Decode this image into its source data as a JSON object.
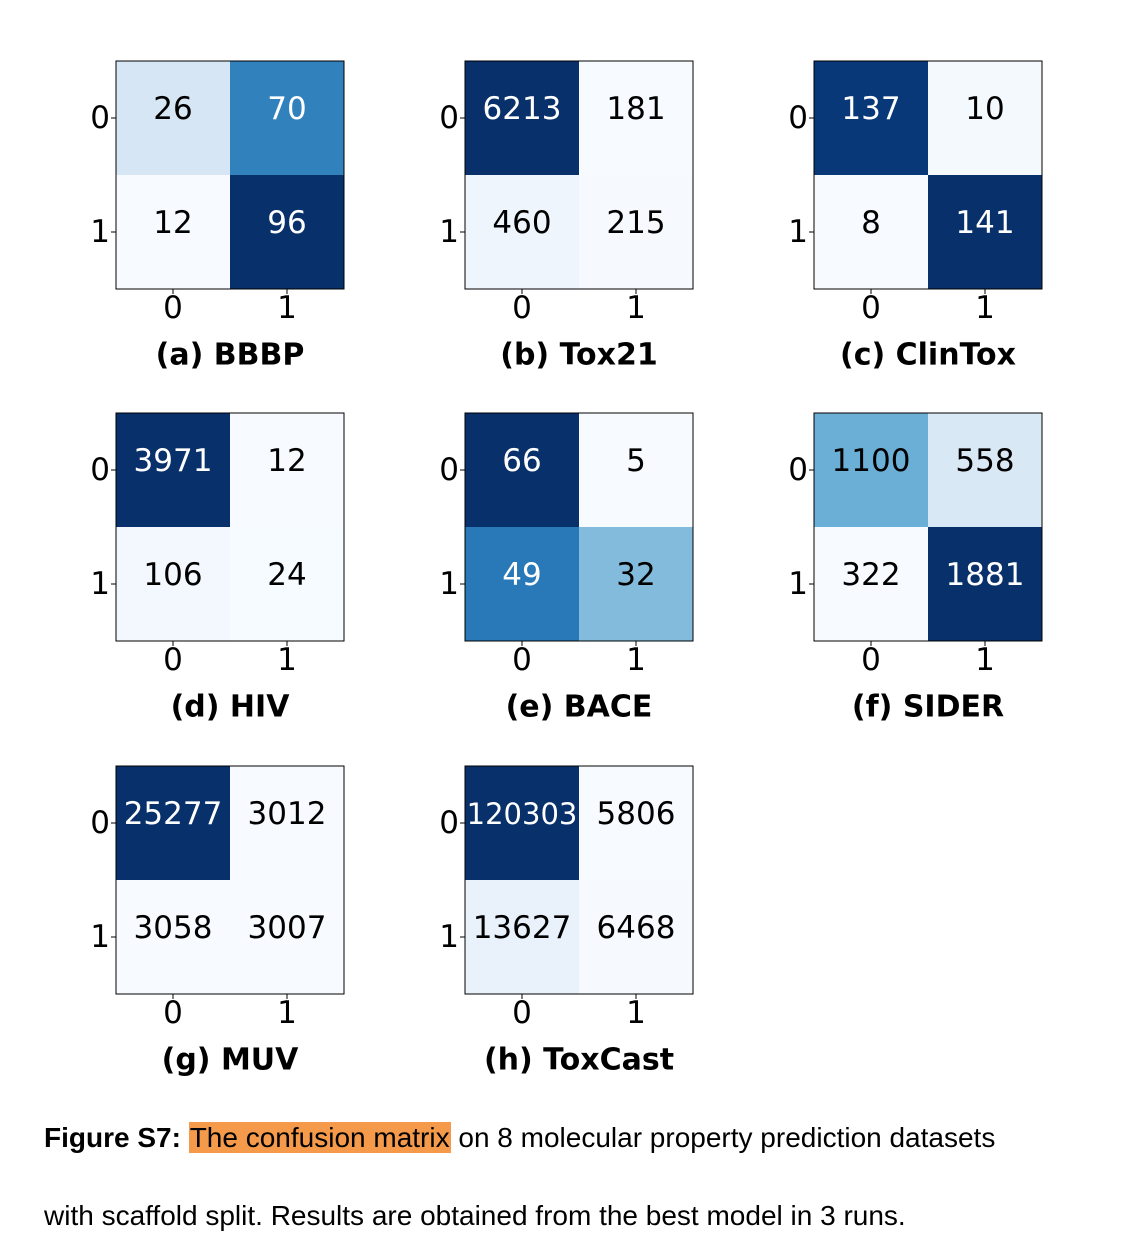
{
  "chart_data": [
    {
      "type": "heatmap",
      "panel_label": "(a) BBBP",
      "x_ticks": [
        "0",
        "1"
      ],
      "y_ticks": [
        "0",
        "1"
      ],
      "matrix": [
        [
          26,
          70
        ],
        [
          12,
          96
        ]
      ],
      "colormap": "Blues"
    },
    {
      "type": "heatmap",
      "panel_label": "(b) Tox21",
      "x_ticks": [
        "0",
        "1"
      ],
      "y_ticks": [
        "0",
        "1"
      ],
      "matrix": [
        [
          6213,
          181
        ],
        [
          460,
          215
        ]
      ],
      "colormap": "Blues"
    },
    {
      "type": "heatmap",
      "panel_label": "(c) ClinTox",
      "x_ticks": [
        "0",
        "1"
      ],
      "y_ticks": [
        "0",
        "1"
      ],
      "matrix": [
        [
          137,
          10
        ],
        [
          8,
          141
        ]
      ],
      "colormap": "Blues"
    },
    {
      "type": "heatmap",
      "panel_label": "(d) HIV",
      "x_ticks": [
        "0",
        "1"
      ],
      "y_ticks": [
        "0",
        "1"
      ],
      "matrix": [
        [
          3971,
          12
        ],
        [
          106,
          24
        ]
      ],
      "colormap": "Blues"
    },
    {
      "type": "heatmap",
      "panel_label": "(e) BACE",
      "x_ticks": [
        "0",
        "1"
      ],
      "y_ticks": [
        "0",
        "1"
      ],
      "matrix": [
        [
          66,
          5
        ],
        [
          49,
          32
        ]
      ],
      "colormap": "Blues"
    },
    {
      "type": "heatmap",
      "panel_label": "(f) SIDER",
      "x_ticks": [
        "0",
        "1"
      ],
      "y_ticks": [
        "0",
        "1"
      ],
      "matrix": [
        [
          1100,
          558
        ],
        [
          322,
          1881
        ]
      ],
      "colormap": "Blues"
    },
    {
      "type": "heatmap",
      "panel_label": "(g) MUV",
      "x_ticks": [
        "0",
        "1"
      ],
      "y_ticks": [
        "0",
        "1"
      ],
      "matrix": [
        [
          25277,
          3012
        ],
        [
          3058,
          3007
        ]
      ],
      "colormap": "Blues"
    },
    {
      "type": "heatmap",
      "panel_label": "(h) ToxCast",
      "x_ticks": [
        "0",
        "1"
      ],
      "y_ticks": [
        "0",
        "1"
      ],
      "matrix": [
        [
          120303,
          5806
        ],
        [
          13627,
          6468
        ]
      ],
      "colormap": "Blues"
    }
  ],
  "caption": {
    "label": "Figure S7:",
    "highlight": "The confusion matrix",
    "line1_rest": " on 8 molecular property prediction datasets",
    "line2": "with scaffold split. Results are obtained from the best model in 3 runs."
  },
  "colors": {
    "highlight": "#f59a4b",
    "text": "#000000",
    "cell_light_text": "#ffffff",
    "cell_dark_text": "#000000"
  }
}
